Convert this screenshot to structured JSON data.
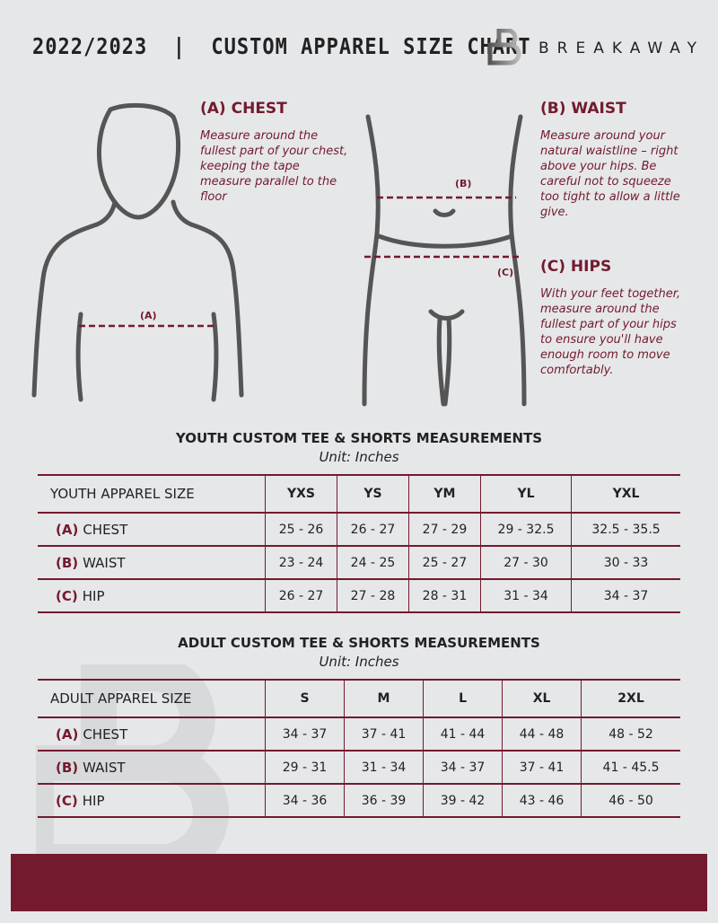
{
  "header": {
    "title": "2022/2023  |  CUSTOM APPAREL SIZE CHART",
    "brand": "BREAKAWAY"
  },
  "colors": {
    "accent": "#731a2e",
    "background": "#e6e7e9"
  },
  "guide": {
    "chest": {
      "heading": "(A) CHEST",
      "text": "Measure around the fullest part of your chest, keeping the tape measure parallel to the floor",
      "marker": "(A)"
    },
    "waist": {
      "heading": "(B) WAIST",
      "text": "Measure around your natural waistline – right above your hips. Be careful not to squeeze too tight to allow a little give.",
      "marker": "(B)"
    },
    "hips": {
      "heading": "(C) HIPS",
      "text": "With your feet together, measure around the fullest part of your hips to ensure you'll have enough room to move comfortably.",
      "marker": "(C)"
    }
  },
  "youth": {
    "title": "YOUTH CUSTOM TEE & SHORTS MEASUREMENTS",
    "unit": "Unit: Inches",
    "header": [
      "YOUTH APPAREL SIZE",
      "YXS",
      "YS",
      "YM",
      "YL",
      "YXL"
    ],
    "rows": [
      {
        "label": "(A)",
        "name": "CHEST",
        "values": [
          "25 - 26",
          "26 - 27",
          "27 - 29",
          "29 - 32.5",
          "32.5 - 35.5"
        ]
      },
      {
        "label": "(B)",
        "name": "WAIST",
        "values": [
          "23 - 24",
          "24 - 25",
          "25 - 27",
          "27 - 30",
          "30 - 33"
        ]
      },
      {
        "label": "(C)",
        "name": "HIP",
        "values": [
          "26 - 27",
          "27 - 28",
          "28 - 31",
          "31 - 34",
          "34 - 37"
        ]
      }
    ]
  },
  "adult": {
    "title": "ADULT CUSTOM TEE & SHORTS MEASUREMENTS",
    "unit": "Unit: Inches",
    "header": [
      "ADULT APPAREL SIZE",
      "S",
      "M",
      "L",
      "XL",
      "2XL"
    ],
    "rows": [
      {
        "label": "(A)",
        "name": "CHEST",
        "values": [
          "34 - 37",
          "37 - 41",
          "41 - 44",
          "44 - 48",
          "48 - 52"
        ]
      },
      {
        "label": "(B)",
        "name": "WAIST",
        "values": [
          "29 - 31",
          "31 - 34",
          "34 - 37",
          "37 - 41",
          "41 - 45.5"
        ]
      },
      {
        "label": "(C)",
        "name": "HIP",
        "values": [
          "34 - 36",
          "36 - 39",
          "39 - 42",
          "43 - 46",
          "46 - 50"
        ]
      }
    ]
  }
}
